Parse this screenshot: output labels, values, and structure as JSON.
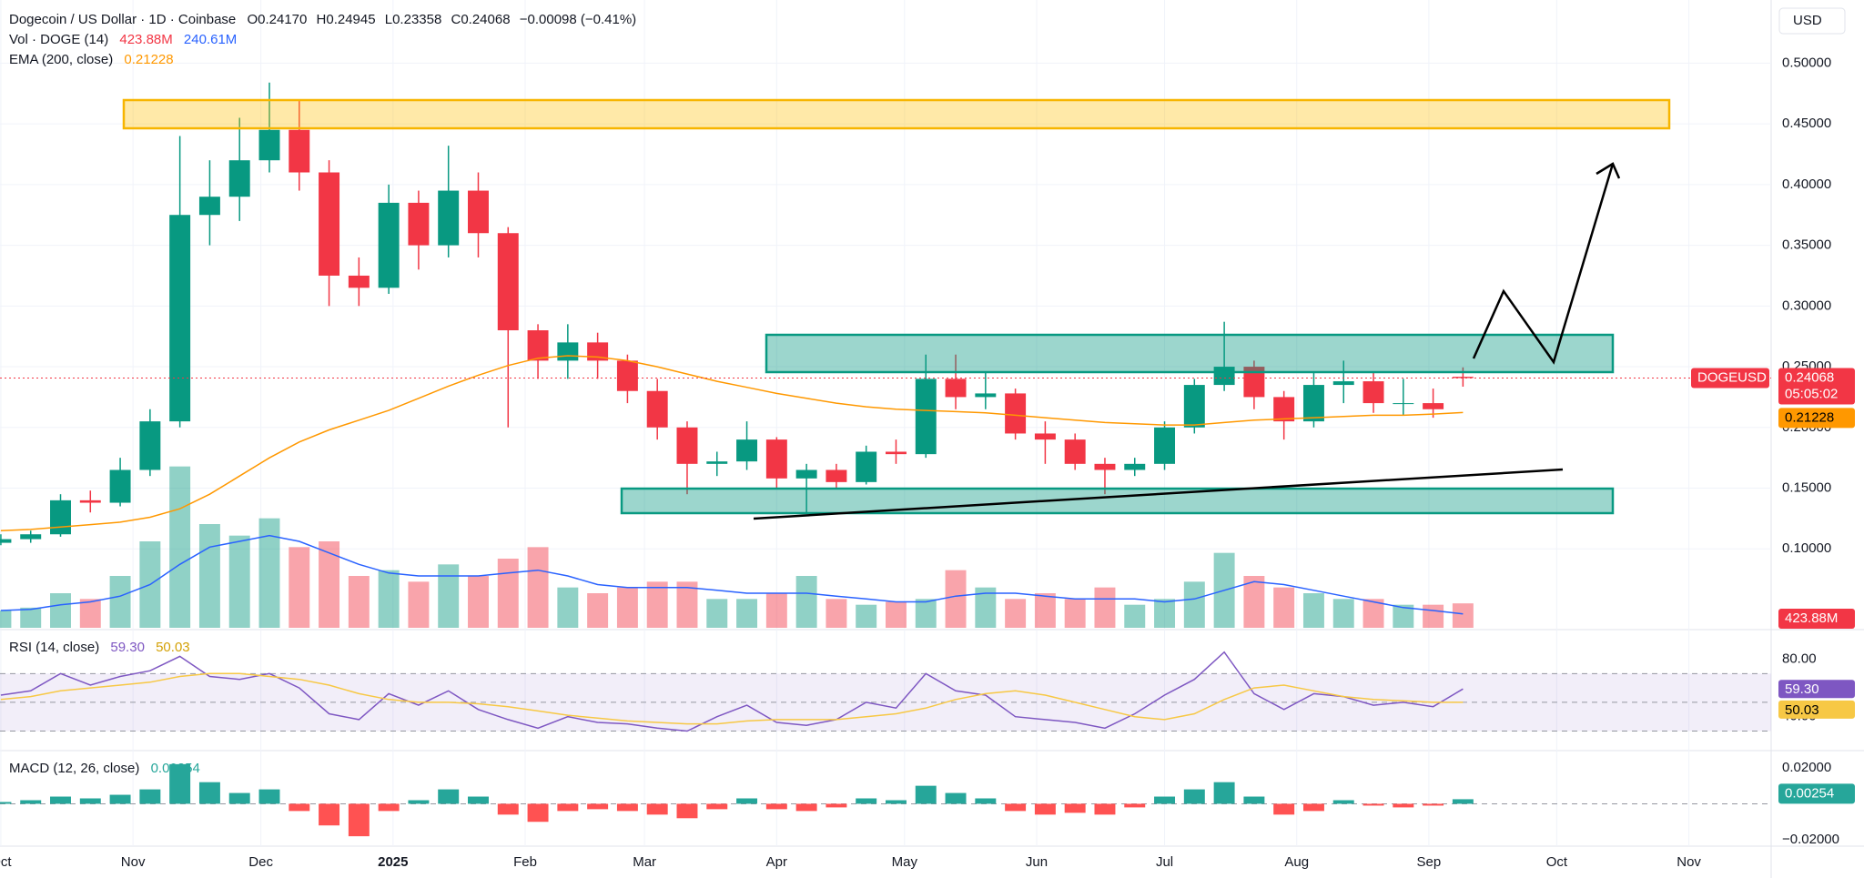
{
  "chart_data": [
    {
      "type": "candlestick",
      "title": "Dogecoin / US Dollar · 1D · Coinbase",
      "ohlc_labels": [
        "O0.24170",
        "H0.24945",
        "L0.23358",
        "C0.24068"
      ],
      "change": "−0.00098 (−0.41%)",
      "currency": "USD",
      "symbol": "DOGEUSD",
      "countdown": "05:05:02",
      "up_color": "#089981",
      "down_color": "#f23645",
      "x": [
        0,
        7,
        14,
        21,
        28,
        35,
        42,
        49,
        56,
        63,
        70,
        77,
        84,
        91,
        98,
        105,
        112,
        119,
        126,
        133,
        140,
        147,
        154,
        161,
        168,
        175,
        182,
        189,
        196,
        203,
        210,
        217,
        224,
        231,
        238,
        245,
        252,
        259,
        266,
        273,
        280,
        287,
        294,
        301,
        308,
        315,
        322,
        329,
        336,
        343
      ],
      "open": [
        0.105,
        0.108,
        0.112,
        0.14,
        0.138,
        0.165,
        0.205,
        0.375,
        0.39,
        0.42,
        0.445,
        0.41,
        0.325,
        0.315,
        0.385,
        0.35,
        0.395,
        0.36,
        0.28,
        0.255,
        0.27,
        0.255,
        0.23,
        0.2,
        0.17,
        0.172,
        0.19,
        0.158,
        0.165,
        0.155,
        0.18,
        0.178,
        0.24,
        0.225,
        0.228,
        0.195,
        0.19,
        0.17,
        0.165,
        0.17,
        0.2,
        0.235,
        0.25,
        0.225,
        0.205,
        0.235,
        0.238,
        0.22,
        0.22,
        0.2417
      ],
      "high": [
        0.112,
        0.115,
        0.145,
        0.148,
        0.175,
        0.215,
        0.44,
        0.42,
        0.455,
        0.484,
        0.47,
        0.42,
        0.34,
        0.4,
        0.395,
        0.432,
        0.41,
        0.365,
        0.285,
        0.285,
        0.278,
        0.26,
        0.24,
        0.205,
        0.18,
        0.205,
        0.192,
        0.17,
        0.17,
        0.185,
        0.19,
        0.26,
        0.26,
        0.245,
        0.232,
        0.205,
        0.195,
        0.175,
        0.175,
        0.205,
        0.24,
        0.287,
        0.255,
        0.23,
        0.245,
        0.255,
        0.245,
        0.24,
        0.232,
        0.24945
      ],
      "low": [
        0.103,
        0.105,
        0.11,
        0.13,
        0.135,
        0.16,
        0.2,
        0.35,
        0.37,
        0.41,
        0.395,
        0.3,
        0.3,
        0.31,
        0.33,
        0.34,
        0.34,
        0.2,
        0.24,
        0.24,
        0.24,
        0.22,
        0.19,
        0.145,
        0.16,
        0.165,
        0.15,
        0.13,
        0.15,
        0.153,
        0.17,
        0.175,
        0.215,
        0.215,
        0.19,
        0.17,
        0.165,
        0.145,
        0.16,
        0.165,
        0.195,
        0.23,
        0.215,
        0.19,
        0.2,
        0.22,
        0.212,
        0.21,
        0.208,
        0.23358
      ],
      "close": [
        0.108,
        0.112,
        0.14,
        0.138,
        0.165,
        0.205,
        0.375,
        0.39,
        0.42,
        0.445,
        0.41,
        0.325,
        0.315,
        0.385,
        0.35,
        0.395,
        0.36,
        0.28,
        0.255,
        0.27,
        0.255,
        0.23,
        0.2,
        0.17,
        0.172,
        0.19,
        0.158,
        0.165,
        0.155,
        0.18,
        0.178,
        0.24,
        0.225,
        0.228,
        0.195,
        0.19,
        0.17,
        0.165,
        0.17,
        0.2,
        0.235,
        0.25,
        0.225,
        0.205,
        0.235,
        0.238,
        0.22,
        0.22,
        0.215,
        0.24068
      ],
      "ema": {
        "name": "EMA (200, close)",
        "color": "#ff9800",
        "values": [
          0.115,
          0.116,
          0.118,
          0.12,
          0.122,
          0.126,
          0.133,
          0.145,
          0.16,
          0.175,
          0.188,
          0.198,
          0.206,
          0.214,
          0.224,
          0.234,
          0.243,
          0.251,
          0.257,
          0.259,
          0.258,
          0.255,
          0.25,
          0.244,
          0.238,
          0.233,
          0.228,
          0.224,
          0.22,
          0.217,
          0.215,
          0.214,
          0.213,
          0.212,
          0.21,
          0.208,
          0.206,
          0.204,
          0.203,
          0.202,
          0.202,
          0.204,
          0.206,
          0.207,
          0.208,
          0.209,
          0.21,
          0.21,
          0.211,
          0.21228
        ]
      },
      "volume": {
        "name": "Vol · DOGE (14)",
        "latest_label": "423.88M",
        "ma_latest_label": "240.61M",
        "ma_color": "#2962ff",
        "ylim": [
          0,
          3000
        ],
        "values": [
          300,
          350,
          600,
          500,
          900,
          1500,
          2800,
          1800,
          1600,
          1900,
          1400,
          1500,
          900,
          1000,
          800,
          1100,
          900,
          1200,
          1400,
          700,
          600,
          700,
          800,
          800,
          500,
          500,
          600,
          900,
          500,
          400,
          450,
          500,
          1000,
          700,
          500,
          600,
          500,
          700,
          400,
          500,
          800,
          1300,
          900,
          700,
          600,
          500,
          500,
          400,
          400,
          423.88
        ],
        "ma_values": [
          300,
          320,
          400,
          450,
          550,
          750,
          1100,
          1400,
          1500,
          1600,
          1500,
          1300,
          1100,
          950,
          900,
          900,
          900,
          950,
          1000,
          900,
          750,
          700,
          700,
          700,
          650,
          600,
          600,
          600,
          550,
          500,
          450,
          450,
          550,
          600,
          600,
          550,
          500,
          500,
          500,
          450,
          500,
          650,
          800,
          750,
          650,
          550,
          450,
          350,
          300,
          240.61
        ]
      },
      "xlim": [
        -0.2,
        415.3
      ],
      "xticks": [
        {
          "value": 0,
          "label": "Oct"
        },
        {
          "value": 31,
          "label": "Nov"
        },
        {
          "value": 61,
          "label": "Dec"
        },
        {
          "value": 92,
          "label": "2025"
        },
        {
          "value": 123,
          "label": "Feb"
        },
        {
          "value": 151,
          "label": "Mar"
        },
        {
          "value": 182,
          "label": "Apr"
        },
        {
          "value": 212,
          "label": "May"
        },
        {
          "value": 243,
          "label": "Jun"
        },
        {
          "value": 273,
          "label": "Jul"
        },
        {
          "value": 304,
          "label": "Aug"
        },
        {
          "value": 335,
          "label": "Sep"
        },
        {
          "value": 365,
          "label": "Oct"
        },
        {
          "value": 396,
          "label": "Nov"
        }
      ],
      "ylim": [
        0.035,
        0.552
      ],
      "yticks": [
        {
          "value": 0.1,
          "label": "0.10000"
        },
        {
          "value": 0.15,
          "label": "0.15000"
        },
        {
          "value": 0.2,
          "label": "0.20000"
        },
        {
          "value": 0.25,
          "label": "0.25000"
        },
        {
          "value": 0.3,
          "label": "0.30000"
        },
        {
          "value": 0.35,
          "label": "0.35000"
        },
        {
          "value": 0.4,
          "label": "0.40000"
        },
        {
          "value": 0.45,
          "label": "0.45000"
        },
        {
          "value": 0.5,
          "label": "0.50000"
        }
      ],
      "grid": true
    },
    {
      "type": "line",
      "title": "RSI (14, close)",
      "series": [
        {
          "name": "RSI",
          "color": "#7e57c2",
          "latest_label": "59.30",
          "values": [
            55,
            58,
            70,
            62,
            68,
            72,
            82,
            68,
            66,
            70,
            60,
            42,
            38,
            56,
            48,
            58,
            45,
            38,
            32,
            40,
            36,
            35,
            32,
            30,
            40,
            48,
            36,
            34,
            38,
            50,
            46,
            70,
            58,
            55,
            40,
            38,
            36,
            32,
            42,
            55,
            66,
            85,
            56,
            45,
            56,
            54,
            48,
            50,
            47,
            59.3
          ]
        },
        {
          "name": "RSI MA",
          "color": "#f7c845",
          "latest_label": "50.03",
          "values": [
            52,
            54,
            58,
            60,
            62,
            64,
            68,
            70,
            70,
            68,
            66,
            62,
            56,
            52,
            50,
            50,
            49,
            47,
            44,
            41,
            39,
            37,
            36,
            35,
            35,
            37,
            38,
            38,
            38,
            40,
            42,
            46,
            52,
            56,
            58,
            55,
            50,
            45,
            40,
            38,
            42,
            52,
            60,
            62,
            58,
            54,
            52,
            51,
            50,
            50.03
          ]
        }
      ],
      "bands": [
        70,
        50,
        30
      ],
      "ylim": [
        17,
        100
      ],
      "yticks": [
        {
          "value": 80,
          "label": "80.00"
        },
        {
          "value": 40,
          "label": "40.00"
        }
      ]
    },
    {
      "type": "histogram",
      "title": "MACD (12, 26, close)",
      "up_color": "#26a69a",
      "down_color": "#ff5252",
      "values": [
        0.001,
        0.002,
        0.004,
        0.003,
        0.005,
        0.008,
        0.022,
        0.012,
        0.006,
        0.008,
        -0.004,
        -0.012,
        -0.018,
        -0.004,
        0.002,
        0.008,
        0.004,
        -0.006,
        -0.01,
        -0.004,
        -0.003,
        -0.004,
        -0.006,
        -0.008,
        -0.003,
        0.003,
        -0.003,
        -0.004,
        -0.002,
        0.003,
        0.002,
        0.01,
        0.006,
        0.003,
        -0.004,
        -0.006,
        -0.005,
        -0.006,
        -0.002,
        0.004,
        0.008,
        0.012,
        0.004,
        -0.006,
        -0.004,
        0.002,
        -0.001,
        -0.002,
        -0.001,
        0.00254
      ],
      "ylim": [
        -0.0235,
        0.029
      ],
      "yticks": [
        {
          "value": 0.02,
          "label": "0.02000"
        },
        {
          "value": -0.02,
          "label": "−0.02000"
        }
      ]
    }
  ]
}
